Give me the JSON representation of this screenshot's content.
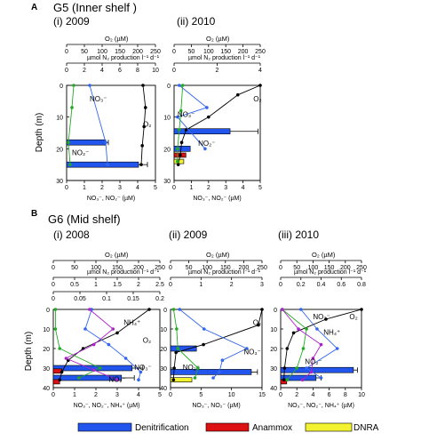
{
  "figure": {
    "panel_a_letter": "A",
    "panel_a_title": "G5 (Inner shelf )",
    "panel_b_letter": "B",
    "panel_b_title": "G6 (Mid shelf)",
    "depth_label": "Depth (m)"
  },
  "legend": {
    "position": "bottom",
    "items": [
      {
        "label": "Denitrification",
        "color": "#2255ee"
      },
      {
        "label": "Anammox",
        "color": "#dd1111"
      },
      {
        "label": "DNRA",
        "color": "#f2f230"
      }
    ]
  },
  "colors": {
    "o2": "#000000",
    "no3": "#3366ee",
    "no2": "#22aa22",
    "nh4": "#aa22cc",
    "denit": "#2255ee",
    "anammox": "#dd1111",
    "dnra": "#f2f230"
  },
  "chart_data": [
    {
      "type": "bar",
      "panel": "A-i",
      "subtitle": "(i) 2009",
      "o2_label": "O₂ (µM)",
      "o2_ticks": [
        "0",
        "50",
        "100",
        "150",
        "200",
        "250"
      ],
      "o2_range": [
        0,
        250
      ],
      "rate_label": "µmol N₂ production l⁻¹ d⁻¹",
      "rate_ticks": [
        "0",
        "2",
        "4",
        "6",
        "8",
        "10"
      ],
      "rate_range": [
        0,
        10
      ],
      "nut_label": "NO₃⁻, NO₂⁻ (µM)",
      "nut_ticks": [
        "0",
        "1",
        "2",
        "3",
        "4",
        "5"
      ],
      "nut_range": [
        0,
        5
      ],
      "depth_ticks": [
        "0",
        "10",
        "20",
        "30"
      ],
      "depth_range": [
        0,
        30
      ],
      "annotations": [
        {
          "text": "NO₃⁻",
          "depth": 5,
          "nut": 1.3
        },
        {
          "text": "O₂",
          "depth": 13,
          "nut": 4.3
        },
        {
          "text": "NO₂⁻",
          "depth": 22,
          "nut": 0.3
        }
      ],
      "series": [
        {
          "key": "o2",
          "axis": "o2",
          "depth": [
            0,
            7,
            13,
            19,
            25
          ],
          "values": [
            215,
            222,
            218,
            213,
            210
          ]
        },
        {
          "key": "no3",
          "axis": "nut",
          "depth": [
            0,
            18,
            25
          ],
          "values": [
            1.3,
            2.2,
            2.3
          ]
        },
        {
          "key": "no2",
          "axis": "nut",
          "depth": [
            0,
            7,
            18,
            25
          ],
          "values": [
            0.4,
            0.3,
            0.1,
            0.2
          ]
        }
      ],
      "bars": [
        {
          "key": "denit",
          "depth": 18,
          "value": 4.4,
          "err": 0.3
        },
        {
          "key": "denit",
          "depth": 25,
          "value": 8.1,
          "err": 1.0
        }
      ]
    },
    {
      "type": "bar",
      "panel": "A-ii",
      "subtitle": "(ii) 2010",
      "o2_label": "O₂ (µM)",
      "o2_ticks": [
        "0",
        "50",
        "100",
        "150",
        "200",
        "250"
      ],
      "o2_range": [
        0,
        250
      ],
      "rate_label": "µmol N₂ production l⁻¹ d⁻¹",
      "rate_ticks": [
        "0",
        "2",
        "4"
      ],
      "rate_range": [
        0,
        4
      ],
      "nut_label": "NO₃⁻, NO₂⁻ (µM)",
      "nut_ticks": [
        "0",
        "1",
        "2",
        "3",
        "4",
        "5"
      ],
      "nut_range": [
        0,
        5
      ],
      "depth_ticks": [
        "0",
        "10",
        "20",
        "30"
      ],
      "depth_range": [
        0,
        30
      ],
      "annotations": [
        {
          "text": "O₂",
          "depth": 5,
          "nut": 4.6
        },
        {
          "text": "NO₃⁻",
          "depth": 10,
          "nut": 0.2
        },
        {
          "text": "NO₂⁻",
          "depth": 19,
          "nut": 1.4
        }
      ],
      "series": [
        {
          "key": "o2",
          "axis": "o2",
          "depth": [
            0,
            3,
            10,
            14,
            18,
            22,
            25
          ],
          "values": [
            250,
            185,
            100,
            35,
            22,
            18,
            12
          ]
        },
        {
          "key": "no3",
          "axis": "nut",
          "depth": [
            0,
            7,
            10,
            20
          ],
          "values": [
            0.3,
            1.9,
            0.2,
            1.8
          ]
        },
        {
          "key": "no2",
          "axis": "nut",
          "depth": [
            0,
            8,
            14,
            20,
            24
          ],
          "values": [
            0.5,
            0.4,
            0.3,
            0.2,
            0.2
          ]
        }
      ],
      "bars": [
        {
          "key": "denit",
          "depth": 14.5,
          "value": 2.6,
          "err": 1.3
        },
        {
          "key": "denit",
          "depth": 20,
          "value": 0.75
        },
        {
          "key": "anammox",
          "depth": 22,
          "value": 0.55
        },
        {
          "key": "dnra",
          "depth": 24,
          "value": 0.45
        }
      ]
    },
    {
      "type": "bar",
      "panel": "B-i",
      "subtitle": "(i) 2008",
      "o2_label": "O₂ (µM)",
      "o2_ticks": [
        "0",
        "50",
        "100",
        "150",
        "200",
        "250"
      ],
      "o2_range": [
        0,
        250
      ],
      "rate_label": "µmol N₂ production l⁻¹ d⁻¹",
      "rate_ticks": [
        "0",
        "0.5",
        "1",
        "1.5",
        "2",
        "2.5"
      ],
      "rate_range": [
        0,
        2.5
      ],
      "nh4_ticks": [
        "0",
        "0.05",
        "0.1",
        "0.15",
        "0.2"
      ],
      "nh4_range": [
        0,
        0.2
      ],
      "nut_label": "NO₃⁻, NO₂⁻, NH₄⁺ (µM)",
      "nut_ticks": [
        "0",
        "1",
        "2",
        "3",
        "4",
        "5"
      ],
      "nut_range": [
        0,
        5
      ],
      "depth_ticks": [
        "0",
        "10",
        "20",
        "30",
        "40"
      ],
      "depth_range": [
        0,
        40
      ],
      "annotations": [
        {
          "text": "NH₄⁺",
          "depth": 8,
          "nut": 3.3
        },
        {
          "text": "O₂",
          "depth": 17,
          "nut": 4.2
        },
        {
          "text": "NO₃⁻",
          "depth": 31,
          "nut": 3.8
        },
        {
          "text": "NO₂⁻",
          "depth": 37,
          "nut": 2.6
        }
      ],
      "series": [
        {
          "key": "o2",
          "axis": "o2",
          "depth": [
            0,
            12,
            20,
            26,
            32,
            36
          ],
          "values": [
            225,
            150,
            70,
            35,
            20,
            15
          ]
        },
        {
          "key": "no3",
          "axis": "nut",
          "depth": [
            0,
            10,
            18,
            25,
            32,
            36
          ],
          "values": [
            1.8,
            1.5,
            2.6,
            3.4,
            4.1,
            4.0
          ]
        },
        {
          "key": "no2",
          "axis": "nut",
          "depth": [
            0,
            10,
            20,
            30,
            35
          ],
          "values": [
            0.1,
            0.1,
            0.3,
            2.2,
            1.2
          ]
        },
        {
          "key": "nh4",
          "axis": "nut",
          "depth": [
            0,
            10,
            18,
            25,
            31,
            36
          ],
          "values": [
            1.7,
            2.8,
            1.9,
            0.6,
            1.9,
            3.0
          ]
        }
      ],
      "bars": [
        {
          "key": "denit",
          "depth": 30,
          "value": 1.85,
          "err": 0.25
        },
        {
          "key": "denit",
          "depth": 35,
          "value": 1.6,
          "err": 0.3
        },
        {
          "key": "anammox",
          "depth": 31.5,
          "value": 0.2
        },
        {
          "key": "anammox",
          "depth": 37,
          "value": 0.15
        }
      ]
    },
    {
      "type": "bar",
      "panel": "B-ii",
      "subtitle": "(ii) 2009",
      "o2_label": "O₂ (µM)",
      "o2_ticks": [
        "0",
        "50",
        "100",
        "150",
        "200",
        "250"
      ],
      "o2_range": [
        0,
        250
      ],
      "rate_label": "µmol N₂ production l⁻¹ d⁻¹",
      "rate_ticks": [
        "0",
        "1",
        "2",
        "3"
      ],
      "rate_range": [
        0,
        3
      ],
      "nut_label": "NO₃⁻, NO₂⁻ (µM)",
      "nut_ticks": [
        "0",
        "5",
        "10",
        "15"
      ],
      "nut_range": [
        0,
        15
      ],
      "depth_ticks": [
        "0",
        "10",
        "20",
        "30",
        "40"
      ],
      "depth_range": [
        0,
        40
      ],
      "annotations": [
        {
          "text": "O₂",
          "depth": 8,
          "nut": 13.5
        },
        {
          "text": "NO₃⁻",
          "depth": 23,
          "nut": 12.0
        },
        {
          "text": "NO₂⁻",
          "depth": 31,
          "nut": 2.0
        }
      ],
      "series": [
        {
          "key": "o2",
          "axis": "o2",
          "depth": [
            0,
            8,
            18,
            22,
            30,
            36
          ],
          "values": [
            250,
            240,
            90,
            15,
            10,
            8
          ]
        },
        {
          "key": "no3",
          "axis": "nut",
          "depth": [
            0,
            10,
            20,
            26,
            32,
            35
          ],
          "values": [
            1.5,
            5.5,
            12.5,
            8.5,
            8.0,
            7.0
          ]
        },
        {
          "key": "no2",
          "axis": "nut",
          "depth": [
            0,
            10,
            20,
            30,
            35
          ],
          "values": [
            0.5,
            1.0,
            1.2,
            4.5,
            4.0
          ]
        }
      ],
      "bars": [
        {
          "key": "denit",
          "depth": 20,
          "value": 0.85
        },
        {
          "key": "denit",
          "depth": 32,
          "value": 2.65,
          "err": 0.2
        },
        {
          "key": "dnra",
          "depth": 36,
          "value": 0.7
        }
      ]
    },
    {
      "type": "bar",
      "panel": "B-iii",
      "subtitle": "(iii) 2010",
      "o2_label": "O₂ (µM)",
      "o2_ticks": [
        "0",
        "50",
        "100",
        "150",
        "200",
        "250"
      ],
      "o2_range": [
        0,
        250
      ],
      "rate_label": "µmol N₂ production l⁻¹ d⁻¹",
      "rate_ticks": [
        "0",
        "0.2",
        "0.4",
        "0.6",
        "0.8"
      ],
      "rate_range": [
        0,
        0.8
      ],
      "nut_label": "NO₃⁻, NO₂⁻, NH₄⁺ (µM)",
      "nut_ticks": [
        "0",
        "2",
        "4",
        "6",
        "8",
        "10"
      ],
      "nut_range": [
        0,
        10
      ],
      "depth_ticks": [
        "0",
        "10",
        "20",
        "30",
        "40"
      ],
      "depth_range": [
        0,
        40
      ],
      "annotations": [
        {
          "text": "NO₃⁻",
          "depth": 5,
          "nut": 4.0
        },
        {
          "text": "NH₄⁺",
          "depth": 13,
          "nut": 5.3
        },
        {
          "text": "O₂",
          "depth": 5,
          "nut": 8.5
        },
        {
          "text": "NO₂⁻",
          "depth": 28,
          "nut": 3.0
        }
      ],
      "series": [
        {
          "key": "o2",
          "axis": "o2",
          "depth": [
            0,
            5,
            12,
            20,
            30,
            36
          ],
          "values": [
            250,
            140,
            40,
            20,
            12,
            10
          ]
        },
        {
          "key": "no3",
          "axis": "nut",
          "depth": [
            0,
            10,
            20,
            30,
            35
          ],
          "values": [
            2.5,
            4.5,
            7.0,
            3.2,
            5.0
          ]
        },
        {
          "key": "no2",
          "axis": "nut",
          "depth": [
            0,
            10,
            20,
            30,
            36
          ],
          "values": [
            0.2,
            3.2,
            2.8,
            2.0,
            0.8
          ]
        },
        {
          "key": "nh4",
          "axis": "nut",
          "depth": [
            0,
            10,
            18,
            25,
            32,
            36
          ],
          "values": [
            0.2,
            2.2,
            5.0,
            4.0,
            3.8,
            2.7
          ]
        }
      ],
      "bars": [
        {
          "key": "denit",
          "depth": 31,
          "value": 0.72,
          "err": 0.04
        },
        {
          "key": "denit",
          "depth": 35,
          "value": 0.35,
          "err": 0.05
        },
        {
          "key": "anammox",
          "depth": 37,
          "value": 0.06
        }
      ]
    }
  ]
}
